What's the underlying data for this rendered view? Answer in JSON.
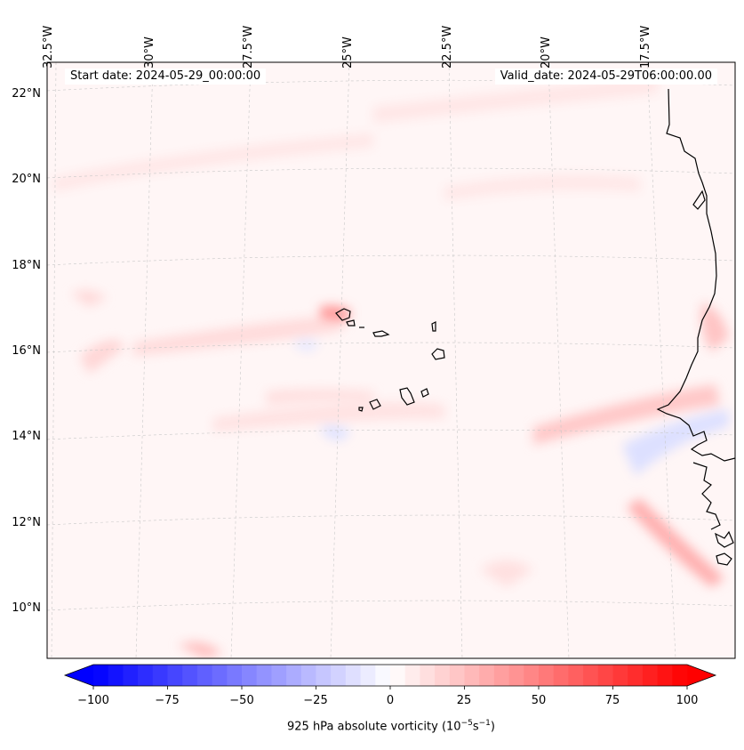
{
  "map": {
    "start_date": "Start date: 2024-05-29_00:00:00",
    "valid_date": "Valid_date: 2024-05-29T06:00:00.00",
    "lon_labels": [
      "32.5°W",
      "30°W",
      "27.5°W",
      "25°W",
      "22.5°W",
      "20°W",
      "17.5°W"
    ],
    "lat_labels": [
      "22°N",
      "20°N",
      "18°N",
      "16°N",
      "14°N",
      "12°N",
      "10°N"
    ]
  },
  "colorbar": {
    "ticks": [
      "−100",
      "−75",
      "−50",
      "−25",
      "0",
      "25",
      "50",
      "75",
      "100"
    ],
    "tick_values": [
      -100,
      -75,
      -50,
      -25,
      0,
      25,
      50,
      75,
      100
    ],
    "range": [
      -100,
      100
    ],
    "label_text": "925 hPa absolute vorticity (10",
    "exp1": "−5",
    "label_mid": "s",
    "exp2": "−1",
    "label_end": ")",
    "colormap": "bwr",
    "low_color": "#0000ff",
    "mid_color": "#ffffff",
    "high_color": "#ff0000"
  },
  "colors": {
    "coastline": "#000000",
    "gridline": "#c8c8c8",
    "background_tint": "#fff6f6"
  }
}
